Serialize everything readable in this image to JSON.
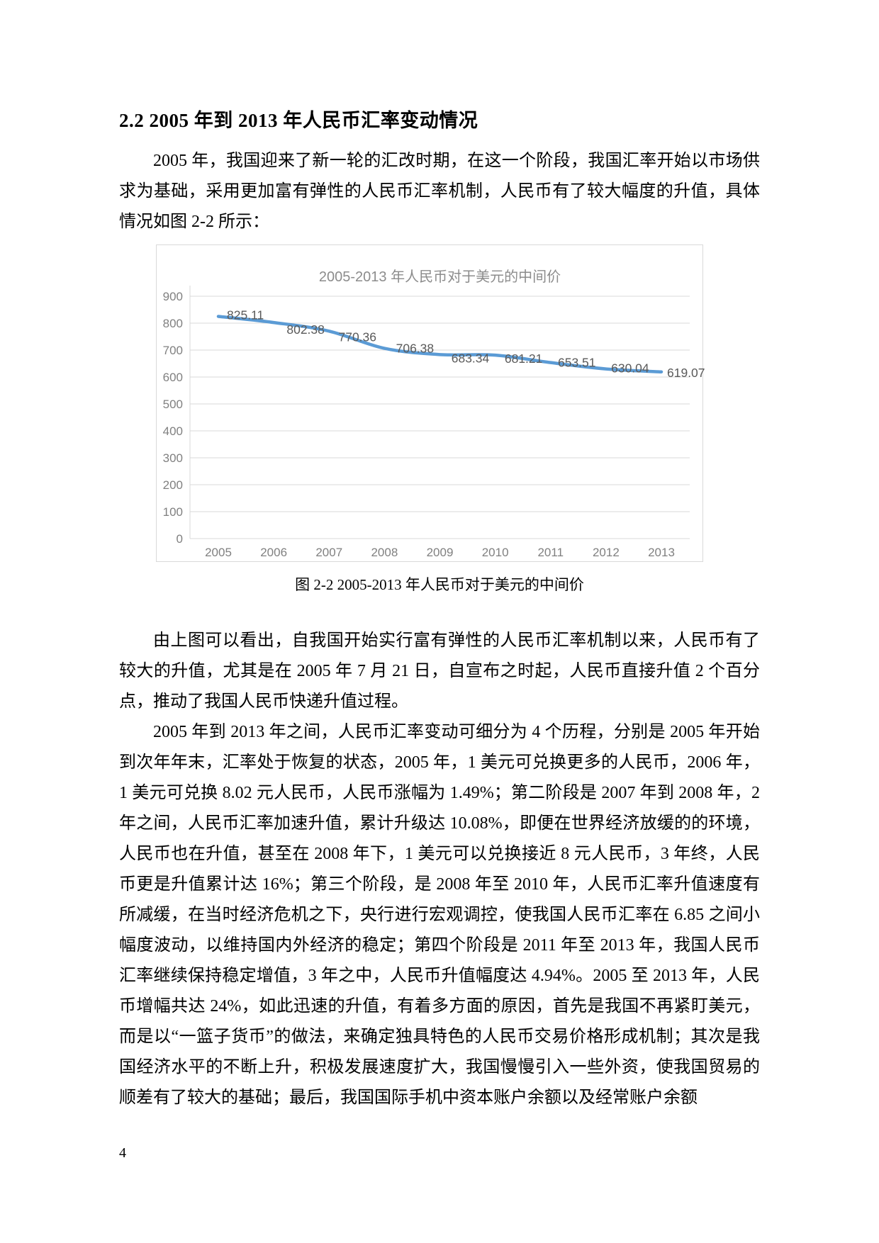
{
  "doc": {
    "heading": "2.2 2005 年到 2013 年人民币汇率变动情况",
    "paragraphs": [
      "2005 年，我国迎来了新一轮的汇改时期，在这一个阶段，我国汇率开始以市场供求为基础，采用更加富有弹性的人民币汇率机制，人民币有了较大幅度的升值，具体情况如图 2-2 所示：",
      "由上图可以看出，自我国开始实行富有弹性的人民币汇率机制以来，人民币有了较大的升值，尤其是在 2005 年 7 月 21 日，自宣布之时起，人民币直接升值 2 个百分点，推动了我国人民币快递升值过程。",
      "2005 年到 2013 年之间，人民币汇率变动可细分为 4 个历程，分别是 2005 年开始到次年年末，汇率处于恢复的状态，2005 年，1 美元可兑换更多的人民币，2006 年，1 美元可兑换 8.02 元人民币，人民币涨幅为 1.49%；第二阶段是 2007 年到 2008 年，2 年之间，人民币汇率加速升值，累计升级达 10.08%，即便在世界经济放缓的的环境，人民币也在升值，甚至在 2008 年下，1 美元可以兑换接近 8 元人民币，3 年终，人民币更是升值累计达 16%；第三个阶段，是 2008 年至 2010 年，人民币汇率升值速度有所减缓，在当时经济危机之下，央行进行宏观调控，使我国人民币汇率在 6.85 之间小幅度波动，以维持国内外经济的稳定；第四个阶段是 2011 年至 2013 年，我国人民币汇率继续保持稳定增值，3 年之中，人民币升值幅度达 4.94%。2005 至 2013 年，人民币增幅共达 24%，如此迅速的升值，有着多方面的原因，首先是我国不再紧盯美元，而是以“一篮子货币”的做法，来确定独具特色的人民币交易价格形成机制；其次是我国经济水平的不断上升，积极发展速度扩大，我国慢慢引入一些外资，使我国贸易的顺差有了较大的基础；最后，我国国际手机中资本账户余额以及经常账户余额"
    ],
    "figure_caption": "图 2-2 2005-2013 年人民币对于美元的中间价",
    "page_number": "4"
  },
  "chart_data": {
    "type": "line",
    "title": "2005-2013 年人民币对于美元的中间价",
    "categories": [
      "2005",
      "2006",
      "2007",
      "2008",
      "2009",
      "2010",
      "2011",
      "2012",
      "2013"
    ],
    "values": [
      825.11,
      802.38,
      770.36,
      706.38,
      683.34,
      681.21,
      653.51,
      630.04,
      619.07
    ],
    "xlabel": "",
    "ylabel": "",
    "ylim": [
      0,
      900
    ],
    "ytick_step": 100,
    "grid": true,
    "legend": "none",
    "data_labels": true,
    "smooth_line": true,
    "colors": {
      "line": "#5b9bd5",
      "title": "#8c8c8c",
      "axis_labels": "#808080",
      "data_labels": "#595959",
      "gridline": "#d9d9d9",
      "border": "#d9d9d9"
    }
  }
}
